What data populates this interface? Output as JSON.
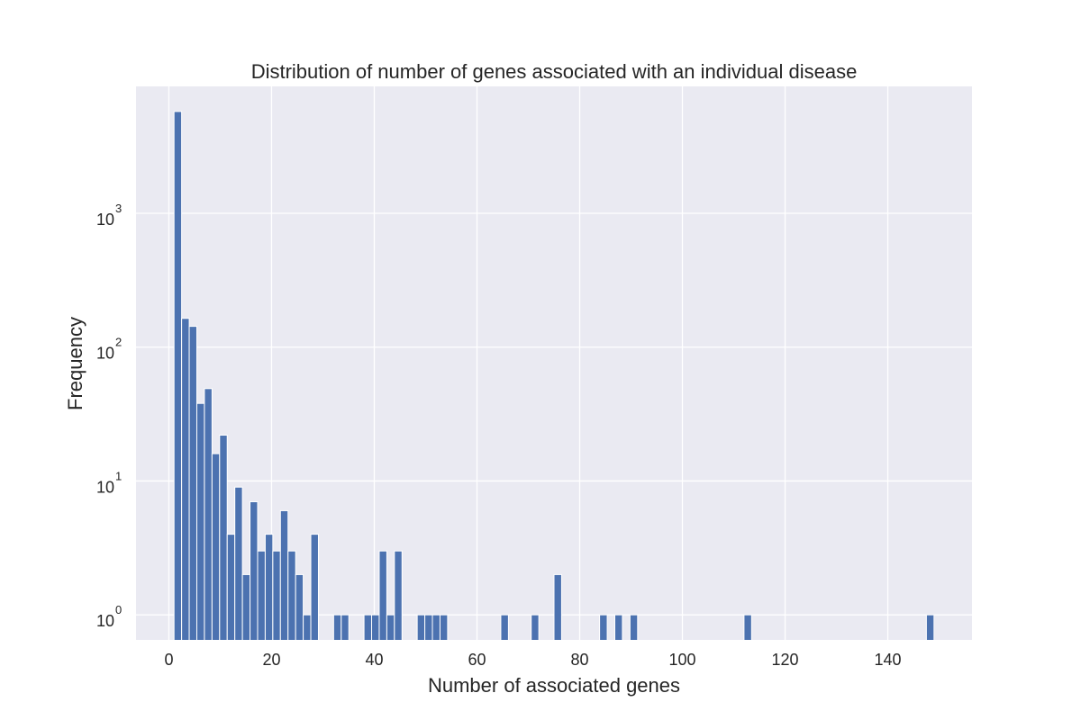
{
  "chart_data": {
    "type": "bar",
    "title": "Distribution of number of genes associated with an individual disease",
    "xlabel": "Number of associated genes",
    "ylabel": "Frequency",
    "yscale": "log",
    "bins": {
      "min": 1,
      "max": 149,
      "count": 100
    },
    "xlim": [
      -6.4,
      156.4
    ],
    "ylim": [
      0.65,
      8870
    ],
    "grid": true,
    "x_ticks": [
      0,
      20,
      40,
      60,
      80,
      100,
      120,
      140
    ],
    "x_tick_labels": [
      "0",
      "20",
      "40",
      "60",
      "80",
      "100",
      "120",
      "140"
    ],
    "y_ticks": [
      1,
      10,
      100,
      1000
    ],
    "y_tick_labels": [
      {
        "base": "10",
        "exp": "0"
      },
      {
        "base": "10",
        "exp": "1"
      },
      {
        "base": "10",
        "exp": "2"
      },
      {
        "base": "10",
        "exp": "3"
      }
    ],
    "nonzero_bins": [
      {
        "bin": 0,
        "count": 5760
      },
      {
        "bin": 1,
        "count": 164
      },
      {
        "bin": 2,
        "count": 143
      },
      {
        "bin": 3,
        "count": 38
      },
      {
        "bin": 4,
        "count": 49
      },
      {
        "bin": 5,
        "count": 16
      },
      {
        "bin": 6,
        "count": 22
      },
      {
        "bin": 7,
        "count": 4
      },
      {
        "bin": 8,
        "count": 9
      },
      {
        "bin": 9,
        "count": 2
      },
      {
        "bin": 10,
        "count": 7
      },
      {
        "bin": 11,
        "count": 3
      },
      {
        "bin": 12,
        "count": 4
      },
      {
        "bin": 13,
        "count": 3
      },
      {
        "bin": 14,
        "count": 6
      },
      {
        "bin": 15,
        "count": 3
      },
      {
        "bin": 16,
        "count": 2
      },
      {
        "bin": 17,
        "count": 1
      },
      {
        "bin": 18,
        "count": 4
      },
      {
        "bin": 21,
        "count": 1
      },
      {
        "bin": 22,
        "count": 1
      },
      {
        "bin": 25,
        "count": 1
      },
      {
        "bin": 26,
        "count": 1
      },
      {
        "bin": 27,
        "count": 3
      },
      {
        "bin": 28,
        "count": 1
      },
      {
        "bin": 29,
        "count": 3
      },
      {
        "bin": 32,
        "count": 1
      },
      {
        "bin": 33,
        "count": 1
      },
      {
        "bin": 34,
        "count": 1
      },
      {
        "bin": 35,
        "count": 1
      },
      {
        "bin": 43,
        "count": 1
      },
      {
        "bin": 47,
        "count": 1
      },
      {
        "bin": 50,
        "count": 2
      },
      {
        "bin": 56,
        "count": 1
      },
      {
        "bin": 58,
        "count": 1
      },
      {
        "bin": 60,
        "count": 1
      },
      {
        "bin": 75,
        "count": 1
      },
      {
        "bin": 99,
        "count": 1
      }
    ],
    "colors": {
      "bar": "#4c72b0",
      "background": "#eaeaf2",
      "grid": "#ffffff",
      "text": "#262626"
    }
  }
}
